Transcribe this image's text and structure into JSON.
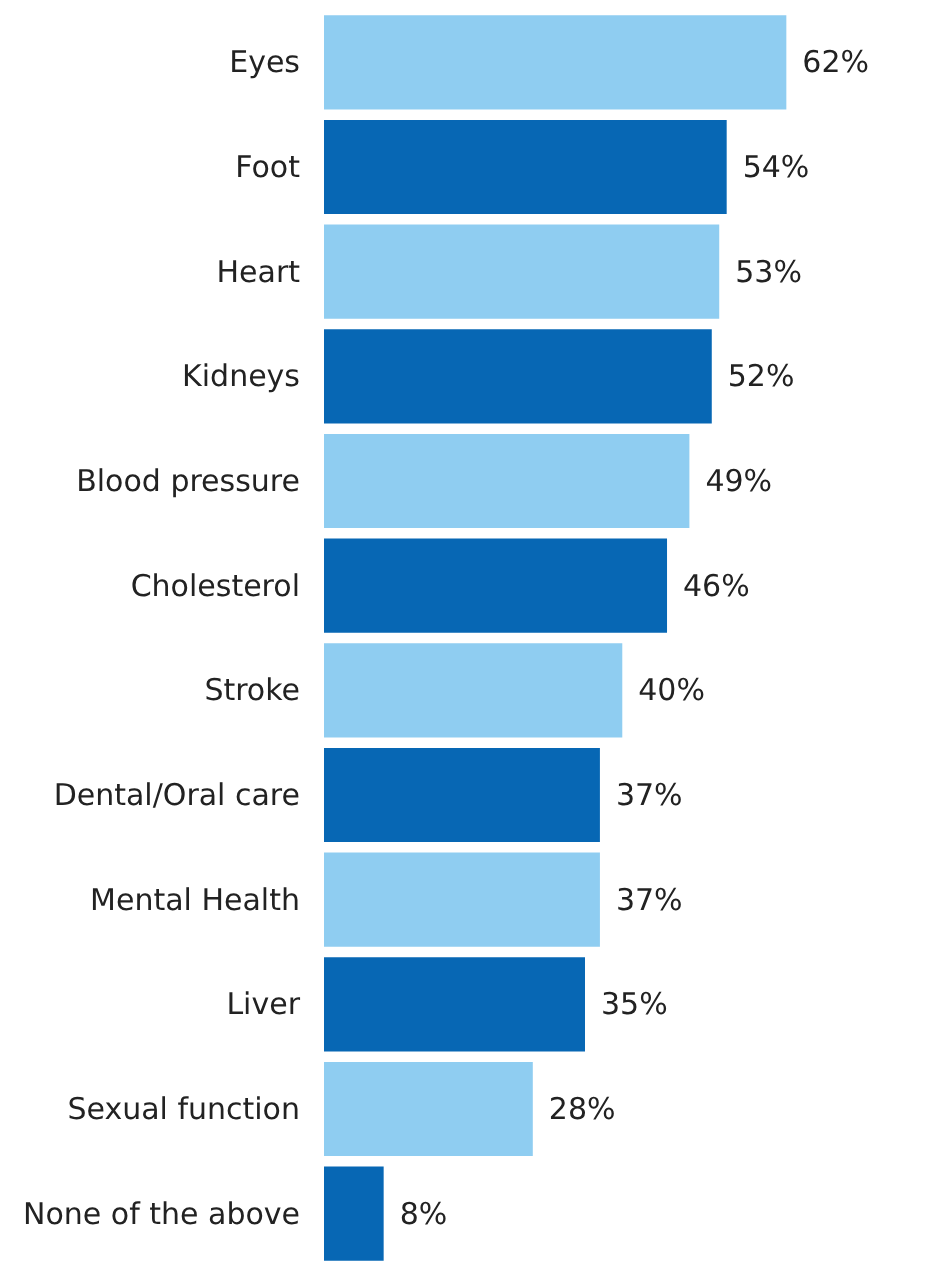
{
  "chart_data": {
    "type": "bar",
    "orientation": "horizontal",
    "categories": [
      "Eyes",
      "Foot",
      "Heart",
      "Kidneys",
      "Blood pressure",
      "Cholesterol",
      "Stroke",
      "Dental/Oral care",
      "Mental Health",
      "Liver",
      "Sexual function",
      "None of the above"
    ],
    "values": [
      62,
      54,
      53,
      52,
      49,
      46,
      40,
      37,
      37,
      35,
      28,
      8
    ],
    "colors": [
      "#8fcdf1",
      "#0767b4",
      "#8fcdf1",
      "#0767b4",
      "#8fcdf1",
      "#0767b4",
      "#8fcdf1",
      "#0767b4",
      "#8fcdf1",
      "#0767b4",
      "#8fcdf1",
      "#0767b4"
    ],
    "value_labels": [
      "62%",
      "54%",
      "53%",
      "52%",
      "49%",
      "46%",
      "40%",
      "37%",
      "37%",
      "35%",
      "28%",
      "8%"
    ]
  }
}
